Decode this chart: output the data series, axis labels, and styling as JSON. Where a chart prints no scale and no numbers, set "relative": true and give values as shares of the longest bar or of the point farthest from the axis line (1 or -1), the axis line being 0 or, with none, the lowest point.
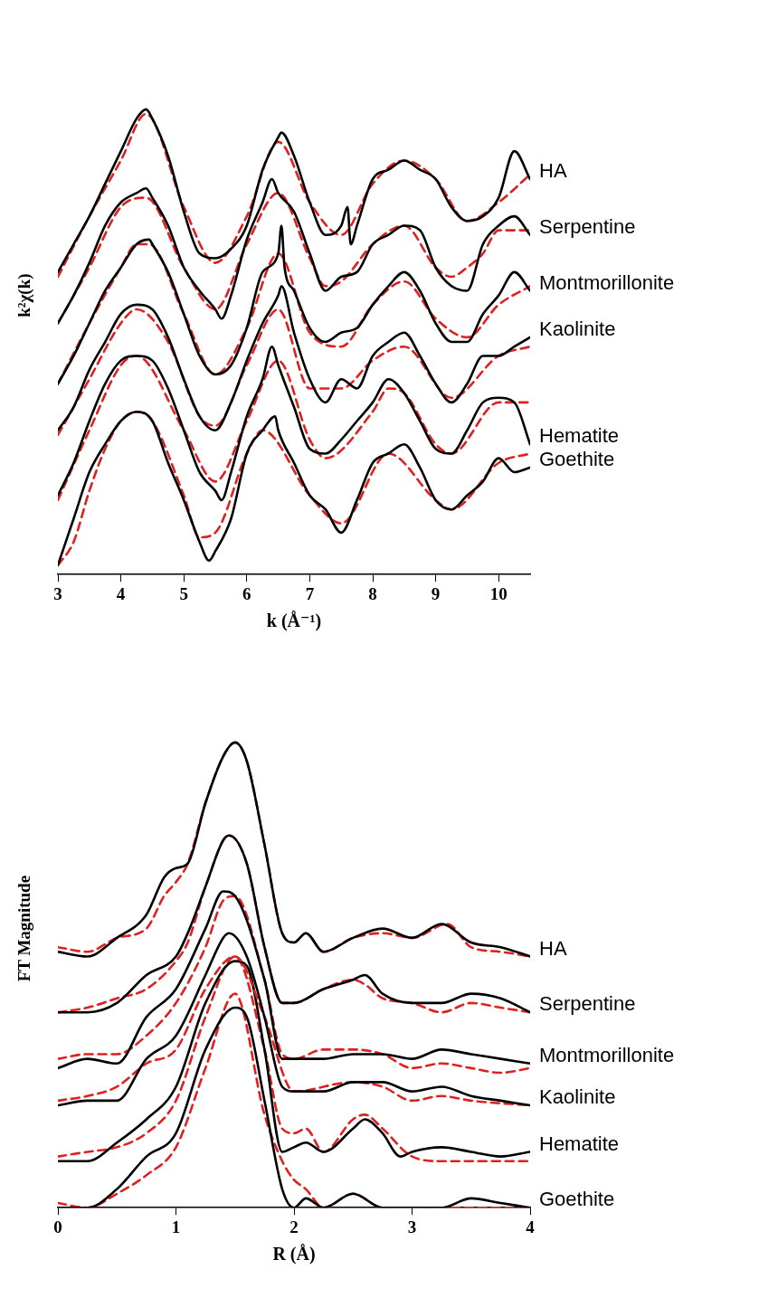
{
  "chart_data": [
    {
      "type": "line",
      "xlabel": "k (Å⁻¹)",
      "ylabel": "k²χ(k)",
      "xlim": [
        3,
        10.5
      ],
      "xticks": [
        3,
        4,
        5,
        6,
        7,
        8,
        9,
        10
      ],
      "relative": true,
      "legend": false,
      "grid": false,
      "marker": "none",
      "series": [
        {
          "name": "HA",
          "color": "#000000",
          "line_style": "solid",
          "x": [
            3,
            3.25,
            3.5,
            3.75,
            4,
            4.25,
            4.4,
            4.5,
            4.75,
            5,
            5.25,
            5.5,
            5.75,
            6,
            6.25,
            6.5,
            6.55,
            6.75,
            7,
            7.25,
            7.5,
            7.6,
            7.65,
            7.75,
            8,
            8.25,
            8.5,
            8.75,
            9,
            9.25,
            9.5,
            9.75,
            10,
            10.25,
            10.5
          ],
          "values": [
            0.65,
            0.71,
            0.77,
            0.84,
            0.91,
            0.98,
            1.0,
            0.98,
            0.9,
            0.78,
            0.69,
            0.68,
            0.7,
            0.75,
            0.87,
            0.94,
            0.95,
            0.9,
            0.8,
            0.73,
            0.75,
            0.79,
            0.71,
            0.75,
            0.85,
            0.87,
            0.89,
            0.87,
            0.85,
            0.79,
            0.76,
            0.77,
            0.81,
            0.91,
            0.85
          ]
        },
        {
          "color": "#e02020",
          "line_style": "dashed",
          "x": [
            3,
            3.5,
            4,
            4.4,
            5,
            5.5,
            6,
            6.5,
            7,
            7.5,
            8,
            8.5,
            9,
            9.5,
            10,
            10.5
          ],
          "values": [
            0.64,
            0.77,
            0.89,
            0.99,
            0.79,
            0.67,
            0.77,
            0.93,
            0.8,
            0.73,
            0.84,
            0.89,
            0.85,
            0.76,
            0.8,
            0.86
          ]
        },
        {
          "name": "Serpentine",
          "color": "#000000",
          "line_style": "solid",
          "x": [
            3,
            3.25,
            3.5,
            3.75,
            4,
            4.25,
            4.4,
            4.5,
            4.75,
            5,
            5.25,
            5.5,
            5.6,
            5.75,
            6,
            6.25,
            6.4,
            6.5,
            6.75,
            7,
            7.25,
            7.5,
            7.75,
            8,
            8.25,
            8.5,
            8.75,
            9,
            9.25,
            9.5,
            9.75,
            10,
            10.25,
            10.5
          ],
          "values": [
            0.54,
            0.6,
            0.67,
            0.75,
            0.8,
            0.82,
            0.83,
            0.81,
            0.75,
            0.66,
            0.61,
            0.57,
            0.55,
            0.6,
            0.72,
            0.8,
            0.85,
            0.82,
            0.78,
            0.69,
            0.61,
            0.64,
            0.65,
            0.71,
            0.73,
            0.75,
            0.74,
            0.66,
            0.62,
            0.61,
            0.71,
            0.75,
            0.77,
            0.73
          ]
        },
        {
          "color": "#e02020",
          "line_style": "dashed",
          "x": [
            3,
            3.5,
            4,
            4.4,
            5,
            5.5,
            6,
            6.5,
            7,
            7.25,
            7.5,
            8,
            8.5,
            9,
            9.25,
            9.5,
            9.75,
            10,
            10.5
          ],
          "values": [
            0.54,
            0.66,
            0.79,
            0.81,
            0.66,
            0.57,
            0.71,
            0.82,
            0.68,
            0.62,
            0.63,
            0.71,
            0.75,
            0.66,
            0.64,
            0.66,
            0.69,
            0.74,
            0.74
          ]
        },
        {
          "name": "Montmorillonite",
          "color": "#000000",
          "line_style": "solid",
          "x": [
            3,
            3.25,
            3.5,
            3.75,
            4,
            4.25,
            4.45,
            4.5,
            4.75,
            5,
            5.25,
            5.5,
            5.75,
            6,
            6.25,
            6.5,
            6.55,
            6.6,
            6.75,
            7,
            7.25,
            7.5,
            7.75,
            8,
            8.25,
            8.5,
            8.75,
            9,
            9.25,
            9.5,
            9.75,
            10,
            10.25,
            10.5
          ],
          "values": [
            0.41,
            0.47,
            0.54,
            0.61,
            0.66,
            0.71,
            0.72,
            0.71,
            0.65,
            0.56,
            0.47,
            0.43,
            0.45,
            0.53,
            0.65,
            0.69,
            0.75,
            0.66,
            0.61,
            0.53,
            0.5,
            0.52,
            0.53,
            0.58,
            0.62,
            0.65,
            0.61,
            0.54,
            0.5,
            0.5,
            0.56,
            0.6,
            0.65,
            0.61
          ]
        },
        {
          "color": "#e02020",
          "line_style": "dashed",
          "x": [
            3,
            3.5,
            4,
            4.25,
            4.45,
            5,
            5.5,
            6,
            6.5,
            7,
            7.5,
            8,
            8.5,
            9,
            9.5,
            10,
            10.5
          ],
          "values": [
            0.41,
            0.54,
            0.66,
            0.71,
            0.71,
            0.56,
            0.43,
            0.53,
            0.69,
            0.52,
            0.49,
            0.58,
            0.63,
            0.55,
            0.51,
            0.58,
            0.62
          ]
        },
        {
          "name": "Kaolinite",
          "color": "#000000",
          "line_style": "solid",
          "x": [
            3,
            3.25,
            3.5,
            3.75,
            4,
            4.25,
            4.5,
            4.75,
            5,
            5.25,
            5.5,
            5.75,
            6,
            6.25,
            6.5,
            6.55,
            6.75,
            7,
            7.25,
            7.5,
            7.75,
            8,
            8.25,
            8.5,
            8.75,
            9,
            9.25,
            9.5,
            9.75,
            10,
            10.25,
            10.5
          ],
          "values": [
            0.31,
            0.36,
            0.44,
            0.5,
            0.56,
            0.58,
            0.57,
            0.51,
            0.42,
            0.34,
            0.31,
            0.37,
            0.46,
            0.54,
            0.6,
            0.62,
            0.52,
            0.42,
            0.37,
            0.42,
            0.4,
            0.47,
            0.5,
            0.52,
            0.47,
            0.41,
            0.37,
            0.41,
            0.47,
            0.47,
            0.49,
            0.51
          ]
        },
        {
          "color": "#e02020",
          "line_style": "dashed",
          "x": [
            3,
            3.5,
            4,
            4.25,
            4.75,
            5.25,
            5.5,
            6,
            6.5,
            7,
            7.5,
            8,
            8.5,
            9.25,
            10,
            10.5
          ],
          "values": [
            0.3,
            0.42,
            0.54,
            0.57,
            0.5,
            0.34,
            0.32,
            0.45,
            0.57,
            0.4,
            0.4,
            0.46,
            0.49,
            0.38,
            0.47,
            0.49
          ]
        },
        {
          "name": "Hematite",
          "color": "#000000",
          "line_style": "solid",
          "x": [
            3,
            3.25,
            3.5,
            3.75,
            4,
            4.25,
            4.5,
            4.75,
            5,
            5.25,
            5.5,
            5.6,
            5.75,
            6,
            6.25,
            6.4,
            6.5,
            6.75,
            7,
            7.25,
            7.5,
            7.75,
            8,
            8.25,
            8.5,
            8.75,
            9,
            9.25,
            9.5,
            9.75,
            10,
            10.25,
            10.5
          ],
          "values": [
            0.17,
            0.24,
            0.33,
            0.41,
            0.46,
            0.47,
            0.46,
            0.4,
            0.31,
            0.22,
            0.18,
            0.16,
            0.22,
            0.34,
            0.42,
            0.49,
            0.45,
            0.36,
            0.27,
            0.26,
            0.29,
            0.33,
            0.37,
            0.42,
            0.39,
            0.33,
            0.27,
            0.26,
            0.31,
            0.37,
            0.38,
            0.37,
            0.28
          ]
        },
        {
          "color": "#e02020",
          "line_style": "dashed",
          "x": [
            3,
            3.5,
            4,
            4.25,
            5,
            5.5,
            6,
            6.5,
            7,
            7.25,
            8,
            8.25,
            8.5,
            9,
            9.25,
            10,
            10.5
          ],
          "values": [
            0.16,
            0.31,
            0.45,
            0.47,
            0.31,
            0.2,
            0.33,
            0.46,
            0.29,
            0.25,
            0.35,
            0.4,
            0.39,
            0.28,
            0.26,
            0.37,
            0.37
          ]
        },
        {
          "name": "Goethite",
          "color": "#000000",
          "line_style": "solid",
          "x": [
            3,
            3.25,
            3.5,
            3.75,
            4,
            4.25,
            4.5,
            4.75,
            5,
            5.25,
            5.4,
            5.5,
            5.75,
            6,
            6.25,
            6.45,
            6.5,
            6.75,
            7,
            7.25,
            7.5,
            7.75,
            8,
            8.25,
            8.5,
            8.75,
            9,
            9.25,
            9.5,
            9.75,
            10,
            10.25,
            10.5
          ],
          "values": [
            0.02,
            0.12,
            0.22,
            0.28,
            0.33,
            0.35,
            0.33,
            0.24,
            0.16,
            0.07,
            0.03,
            0.05,
            0.12,
            0.26,
            0.31,
            0.34,
            0.31,
            0.24,
            0.17,
            0.14,
            0.09,
            0.16,
            0.24,
            0.26,
            0.28,
            0.23,
            0.16,
            0.14,
            0.17,
            0.2,
            0.25,
            0.22,
            0.23
          ]
        },
        {
          "color": "#e02020",
          "line_style": "dashed",
          "x": [
            3,
            3.25,
            3.5,
            3.75,
            4,
            4.25,
            4.5,
            5,
            5.25,
            5.5,
            6,
            6.25,
            7,
            7.5,
            8.25,
            9,
            9.25,
            10,
            10.5
          ],
          "values": [
            0.02,
            0.07,
            0.18,
            0.27,
            0.33,
            0.35,
            0.33,
            0.17,
            0.08,
            0.09,
            0.26,
            0.31,
            0.17,
            0.11,
            0.26,
            0.16,
            0.14,
            0.24,
            0.26
          ]
        }
      ]
    },
    {
      "type": "line",
      "xlabel": "R (Å)",
      "ylabel": "FT Magnitude",
      "xlim": [
        0,
        4
      ],
      "xticks": [
        0,
        1,
        2,
        3,
        4
      ],
      "relative": true,
      "legend": false,
      "grid": false,
      "marker": "none",
      "series": [
        {
          "name": "HA",
          "color": "#000000",
          "line_style": "solid",
          "x": [
            0,
            0.25,
            0.5,
            0.75,
            0.9,
            1,
            1.1,
            1.25,
            1.4,
            1.5,
            1.6,
            1.75,
            1.9,
            2,
            2.1,
            2.25,
            2.5,
            2.75,
            3,
            3.25,
            3.5,
            3.75,
            4
          ],
          "values": [
            0.55,
            0.54,
            0.58,
            0.63,
            0.71,
            0.73,
            0.74,
            0.87,
            0.97,
            1.0,
            0.96,
            0.78,
            0.59,
            0.57,
            0.59,
            0.55,
            0.58,
            0.6,
            0.58,
            0.61,
            0.57,
            0.56,
            0.54
          ]
        },
        {
          "color": "#e02020",
          "line_style": "dashed",
          "x": [
            0,
            0.25,
            0.5,
            0.75,
            0.9,
            1,
            1.1,
            1.25,
            1.4,
            1.5,
            1.6,
            1.75,
            1.9,
            2,
            2.1,
            2.25,
            2.5,
            2.75,
            3,
            3.3,
            3.5,
            3.75,
            4
          ],
          "values": [
            0.56,
            0.55,
            0.58,
            0.6,
            0.67,
            0.7,
            0.74,
            0.87,
            0.97,
            1.0,
            0.96,
            0.78,
            0.59,
            0.57,
            0.59,
            0.55,
            0.58,
            0.59,
            0.58,
            0.61,
            0.56,
            0.55,
            0.54
          ]
        },
        {
          "name": "Serpentine",
          "color": "#000000",
          "line_style": "solid",
          "x": [
            0,
            0.25,
            0.5,
            0.75,
            1,
            1.1,
            1.25,
            1.4,
            1.45,
            1.6,
            1.75,
            1.9,
            2,
            2.25,
            2.5,
            2.6,
            2.75,
            3,
            3.25,
            3.5,
            3.75,
            4
          ],
          "values": [
            0.42,
            0.42,
            0.44,
            0.5,
            0.54,
            0.59,
            0.69,
            0.79,
            0.8,
            0.74,
            0.56,
            0.44,
            0.44,
            0.47,
            0.49,
            0.5,
            0.46,
            0.44,
            0.44,
            0.46,
            0.45,
            0.42
          ]
        },
        {
          "color": "#e02020",
          "line_style": "dashed",
          "x": [
            0,
            0.25,
            0.5,
            0.75,
            1,
            1.1,
            1.25,
            1.45,
            1.6,
            1.75,
            1.9,
            2,
            2.25,
            2.5,
            2.6,
            2.75,
            3,
            3.25,
            3.5,
            3.75,
            4
          ],
          "values": [
            0.42,
            0.43,
            0.45,
            0.47,
            0.53,
            0.57,
            0.69,
            0.8,
            0.74,
            0.56,
            0.44,
            0.44,
            0.47,
            0.49,
            0.48,
            0.45,
            0.44,
            0.42,
            0.44,
            0.43,
            0.42
          ]
        },
        {
          "name": "Montmorillonite",
          "color": "#000000",
          "line_style": "solid",
          "x": [
            0,
            0.25,
            0.5,
            0.75,
            1,
            1.25,
            1.4,
            1.5,
            1.75,
            1.9,
            2,
            2.25,
            2.5,
            2.75,
            3,
            3.25,
            3.5,
            3.75,
            4
          ],
          "values": [
            0.3,
            0.32,
            0.31,
            0.41,
            0.47,
            0.6,
            0.68,
            0.67,
            0.49,
            0.32,
            0.32,
            0.32,
            0.33,
            0.33,
            0.32,
            0.34,
            0.33,
            0.32,
            0.31
          ]
        },
        {
          "color": "#e02020",
          "line_style": "dashed",
          "x": [
            0,
            0.25,
            0.5,
            0.75,
            1,
            1.25,
            1.4,
            1.5,
            1.75,
            1.9,
            2,
            2.25,
            2.5,
            2.75,
            3,
            3.25,
            3.5,
            3.75,
            4
          ],
          "values": [
            0.32,
            0.33,
            0.33,
            0.37,
            0.44,
            0.56,
            0.66,
            0.67,
            0.49,
            0.33,
            0.32,
            0.34,
            0.34,
            0.33,
            0.3,
            0.31,
            0.3,
            0.29,
            0.3
          ]
        },
        {
          "name": "Kaolinite",
          "color": "#000000",
          "line_style": "solid",
          "x": [
            0,
            0.25,
            0.5,
            0.75,
            1,
            1.25,
            1.4,
            1.45,
            1.6,
            1.75,
            1.9,
            2,
            2.25,
            2.5,
            2.75,
            3,
            3.25,
            3.5,
            3.75,
            4
          ],
          "values": [
            0.22,
            0.23,
            0.23,
            0.32,
            0.37,
            0.5,
            0.58,
            0.59,
            0.54,
            0.41,
            0.26,
            0.25,
            0.25,
            0.27,
            0.27,
            0.25,
            0.26,
            0.24,
            0.23,
            0.22
          ]
        },
        {
          "color": "#e02020",
          "line_style": "dashed",
          "x": [
            0,
            0.25,
            0.5,
            0.75,
            1,
            1.25,
            1.5,
            1.75,
            2,
            2.5,
            2.75,
            3,
            3.25,
            3.5,
            4
          ],
          "values": [
            0.23,
            0.24,
            0.26,
            0.31,
            0.34,
            0.47,
            0.54,
            0.41,
            0.25,
            0.27,
            0.26,
            0.23,
            0.24,
            0.23,
            0.22
          ]
        },
        {
          "name": "Hematite",
          "color": "#000000",
          "line_style": "solid",
          "x": [
            0,
            0.25,
            0.5,
            0.75,
            1,
            1.25,
            1.5,
            1.6,
            1.75,
            1.9,
            2,
            2.1,
            2.25,
            2.5,
            2.6,
            2.75,
            2.9,
            3,
            3.25,
            3.5,
            3.75,
            4
          ],
          "values": [
            0.1,
            0.1,
            0.14,
            0.19,
            0.26,
            0.44,
            0.53,
            0.52,
            0.34,
            0.12,
            0.13,
            0.14,
            0.12,
            0.17,
            0.19,
            0.16,
            0.11,
            0.12,
            0.13,
            0.12,
            0.11,
            0.12
          ]
        },
        {
          "color": "#e02020",
          "line_style": "dashed",
          "x": [
            0,
            0.25,
            0.5,
            0.75,
            1,
            1.25,
            1.5,
            1.75,
            1.9,
            2,
            2.1,
            2.25,
            2.5,
            2.6,
            2.75,
            3,
            3.25,
            3.5,
            3.75,
            4
          ],
          "values": [
            0.11,
            0.12,
            0.13,
            0.16,
            0.23,
            0.41,
            0.54,
            0.34,
            0.17,
            0.16,
            0.17,
            0.12,
            0.19,
            0.2,
            0.17,
            0.11,
            0.1,
            0.1,
            0.1,
            0.1
          ]
        },
        {
          "name": "Goethite",
          "color": "#000000",
          "line_style": "solid",
          "x": [
            0,
            0.25,
            0.5,
            0.75,
            1,
            1.25,
            1.5,
            1.6,
            1.75,
            1.9,
            2,
            2.1,
            2.25,
            2.5,
            2.75,
            3,
            3.25,
            3.5,
            3.75,
            4
          ],
          "values": [
            0,
            0,
            0.04,
            0.11,
            0.16,
            0.34,
            0.43,
            0.41,
            0.23,
            0.04,
            0,
            0.02,
            0,
            0.03,
            0,
            0,
            0,
            0.02,
            0.01,
            0
          ]
        },
        {
          "color": "#e02020",
          "line_style": "dashed",
          "x": [
            0,
            0.25,
            0.5,
            0.75,
            1,
            1.25,
            1.5,
            1.75,
            1.9,
            2,
            2.1,
            2.25,
            2.5,
            2.75,
            3,
            3.25,
            3.5,
            3.75,
            4
          ],
          "values": [
            0.01,
            0,
            0.03,
            0.07,
            0.13,
            0.3,
            0.46,
            0.2,
            0.1,
            0.06,
            0.04,
            0,
            0.03,
            0,
            0,
            0,
            0,
            0,
            0
          ]
        }
      ]
    }
  ]
}
